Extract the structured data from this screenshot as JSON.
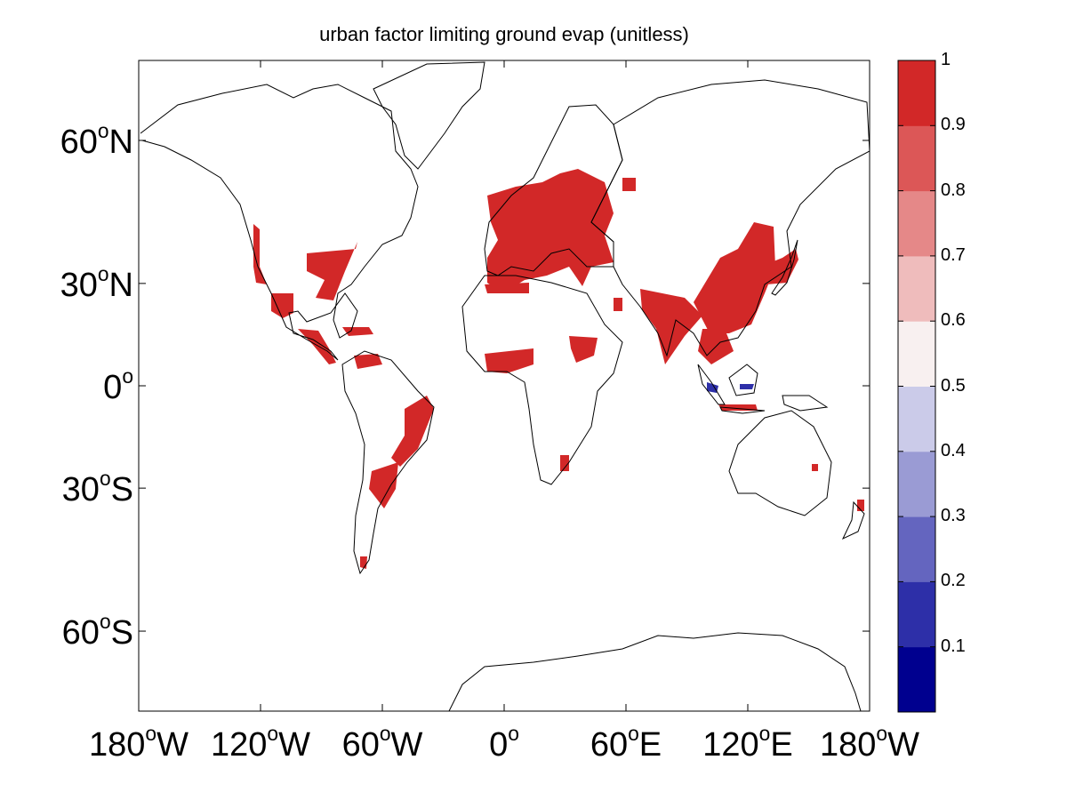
{
  "title": "urban factor limiting ground evap (unitless)",
  "axes": {
    "y_ticks": [
      {
        "lat": 60,
        "num": "60",
        "hemi": "N"
      },
      {
        "lat": 30,
        "num": "30",
        "hemi": "N"
      },
      {
        "lat": 0,
        "num": "0",
        "hemi": ""
      },
      {
        "lat": -30,
        "num": "30",
        "hemi": "S"
      },
      {
        "lat": -60,
        "num": "60",
        "hemi": "S"
      }
    ],
    "x_ticks": [
      {
        "lon": -180,
        "num": "180",
        "hemi": "W"
      },
      {
        "lon": -120,
        "num": "120",
        "hemi": "W"
      },
      {
        "lon": -60,
        "num": "60",
        "hemi": "W"
      },
      {
        "lon": 0,
        "num": "0",
        "hemi": ""
      },
      {
        "lon": 60,
        "num": "60",
        "hemi": "E"
      },
      {
        "lon": 120,
        "num": "120",
        "hemi": "E"
      },
      {
        "lon": 180,
        "num": "180",
        "hemi": "W"
      }
    ],
    "lon_range": [
      -180,
      180
    ],
    "projection": "mercator"
  },
  "colorbar": {
    "ticks": [
      "0.1",
      "0.2",
      "0.3",
      "0.4",
      "0.5",
      "0.6",
      "0.7",
      "0.8",
      "0.9",
      "1"
    ],
    "colors": [
      "#00008f",
      "#2d2fa8",
      "#6465bf",
      "#9a9bd4",
      "#cbcbe9",
      "#f8f0f0",
      "#efbcbc",
      "#e58888",
      "#dc5757",
      "#d22828"
    ],
    "range": [
      0,
      1
    ]
  },
  "urban_regions": [
    {
      "name": "eastern-us",
      "value": 0.95
    },
    {
      "name": "western-us",
      "value": 0.95
    },
    {
      "name": "mexico",
      "value": 0.95
    },
    {
      "name": "central-america",
      "value": 0.95
    },
    {
      "name": "caribbean",
      "value": 0.95
    },
    {
      "name": "venezuela",
      "value": 0.95
    },
    {
      "name": "brazil-southeast",
      "value": 0.95
    },
    {
      "name": "argentina",
      "value": 0.95
    },
    {
      "name": "southern-chile",
      "value": 0.95
    },
    {
      "name": "europe",
      "value": 0.95
    },
    {
      "name": "russia-west",
      "value": 0.95
    },
    {
      "name": "north-africa",
      "value": 0.95
    },
    {
      "name": "west-africa",
      "value": 0.95
    },
    {
      "name": "east-africa",
      "value": 0.95
    },
    {
      "name": "south-africa",
      "value": 0.95
    },
    {
      "name": "middle-east",
      "value": 0.95
    },
    {
      "name": "india",
      "value": 0.95
    },
    {
      "name": "china",
      "value": 0.95
    },
    {
      "name": "japan-korea",
      "value": 0.95
    },
    {
      "name": "southeast-asia",
      "value": 0.95
    },
    {
      "name": "indonesia-java",
      "value": 0.95
    },
    {
      "name": "sumatra-low",
      "value": 0.1
    },
    {
      "name": "sulawesi-low",
      "value": 0.1
    },
    {
      "name": "australia-east",
      "value": 0.95
    },
    {
      "name": "new-zealand",
      "value": 0.95
    }
  ]
}
